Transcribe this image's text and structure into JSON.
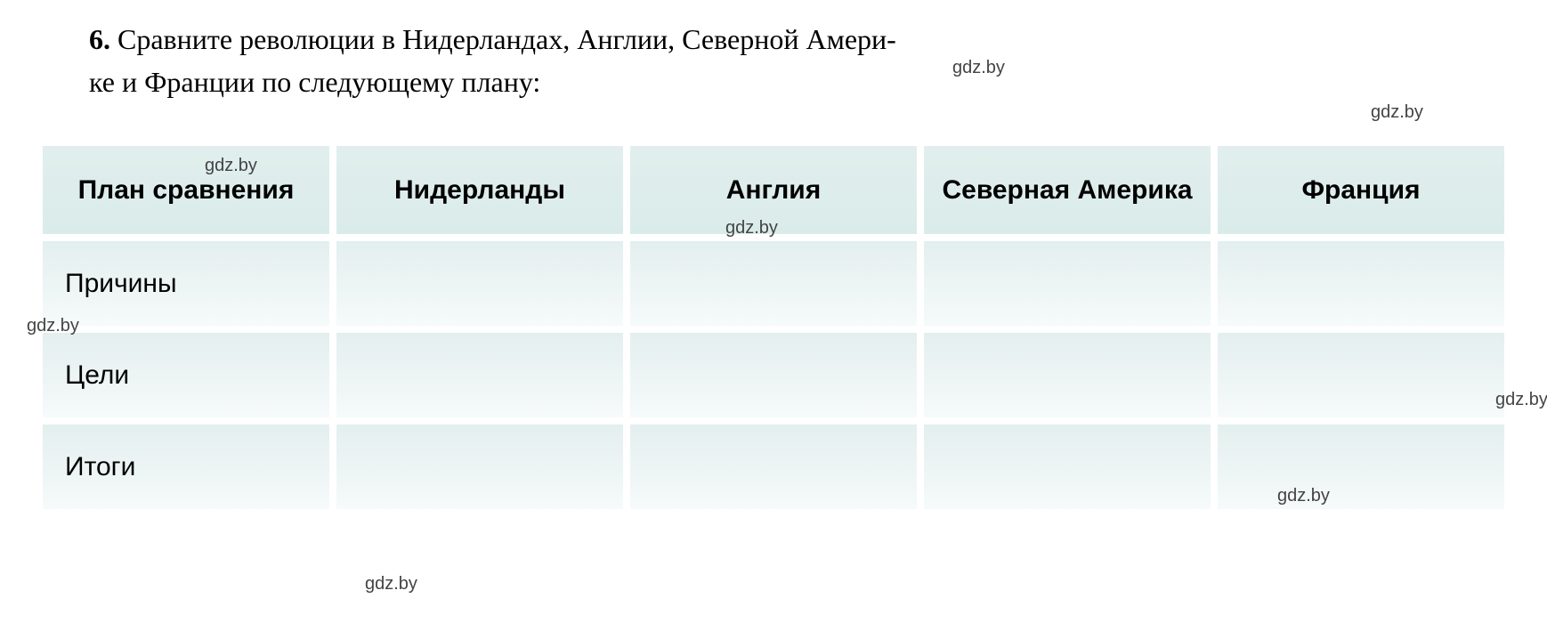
{
  "question": {
    "number": "6.",
    "text_line1": "Сравните революции в Нидерландах, Англии, Северной Амери-",
    "text_line2": "ке и Франции по следующему плану:"
  },
  "watermark": "gdz.by",
  "table": {
    "headers": {
      "plan": "План сравнения",
      "col1": "Нидерланды",
      "col2": "Англия",
      "col3": "Северная Америка",
      "col4": "Франция"
    },
    "rows": [
      {
        "label": "Причины",
        "cells": [
          "",
          "",
          "",
          ""
        ]
      },
      {
        "label": "Цели",
        "cells": [
          "",
          "",
          "",
          ""
        ]
      },
      {
        "label": "Итоги",
        "cells": [
          "",
          "",
          "",
          ""
        ]
      }
    ],
    "header_bg_color": "#e1eeed",
    "cell_bg_top": "#e3efee",
    "cell_bg_bottom": "#f6fafa",
    "header_fontsize": 30,
    "cell_fontsize": 30
  }
}
